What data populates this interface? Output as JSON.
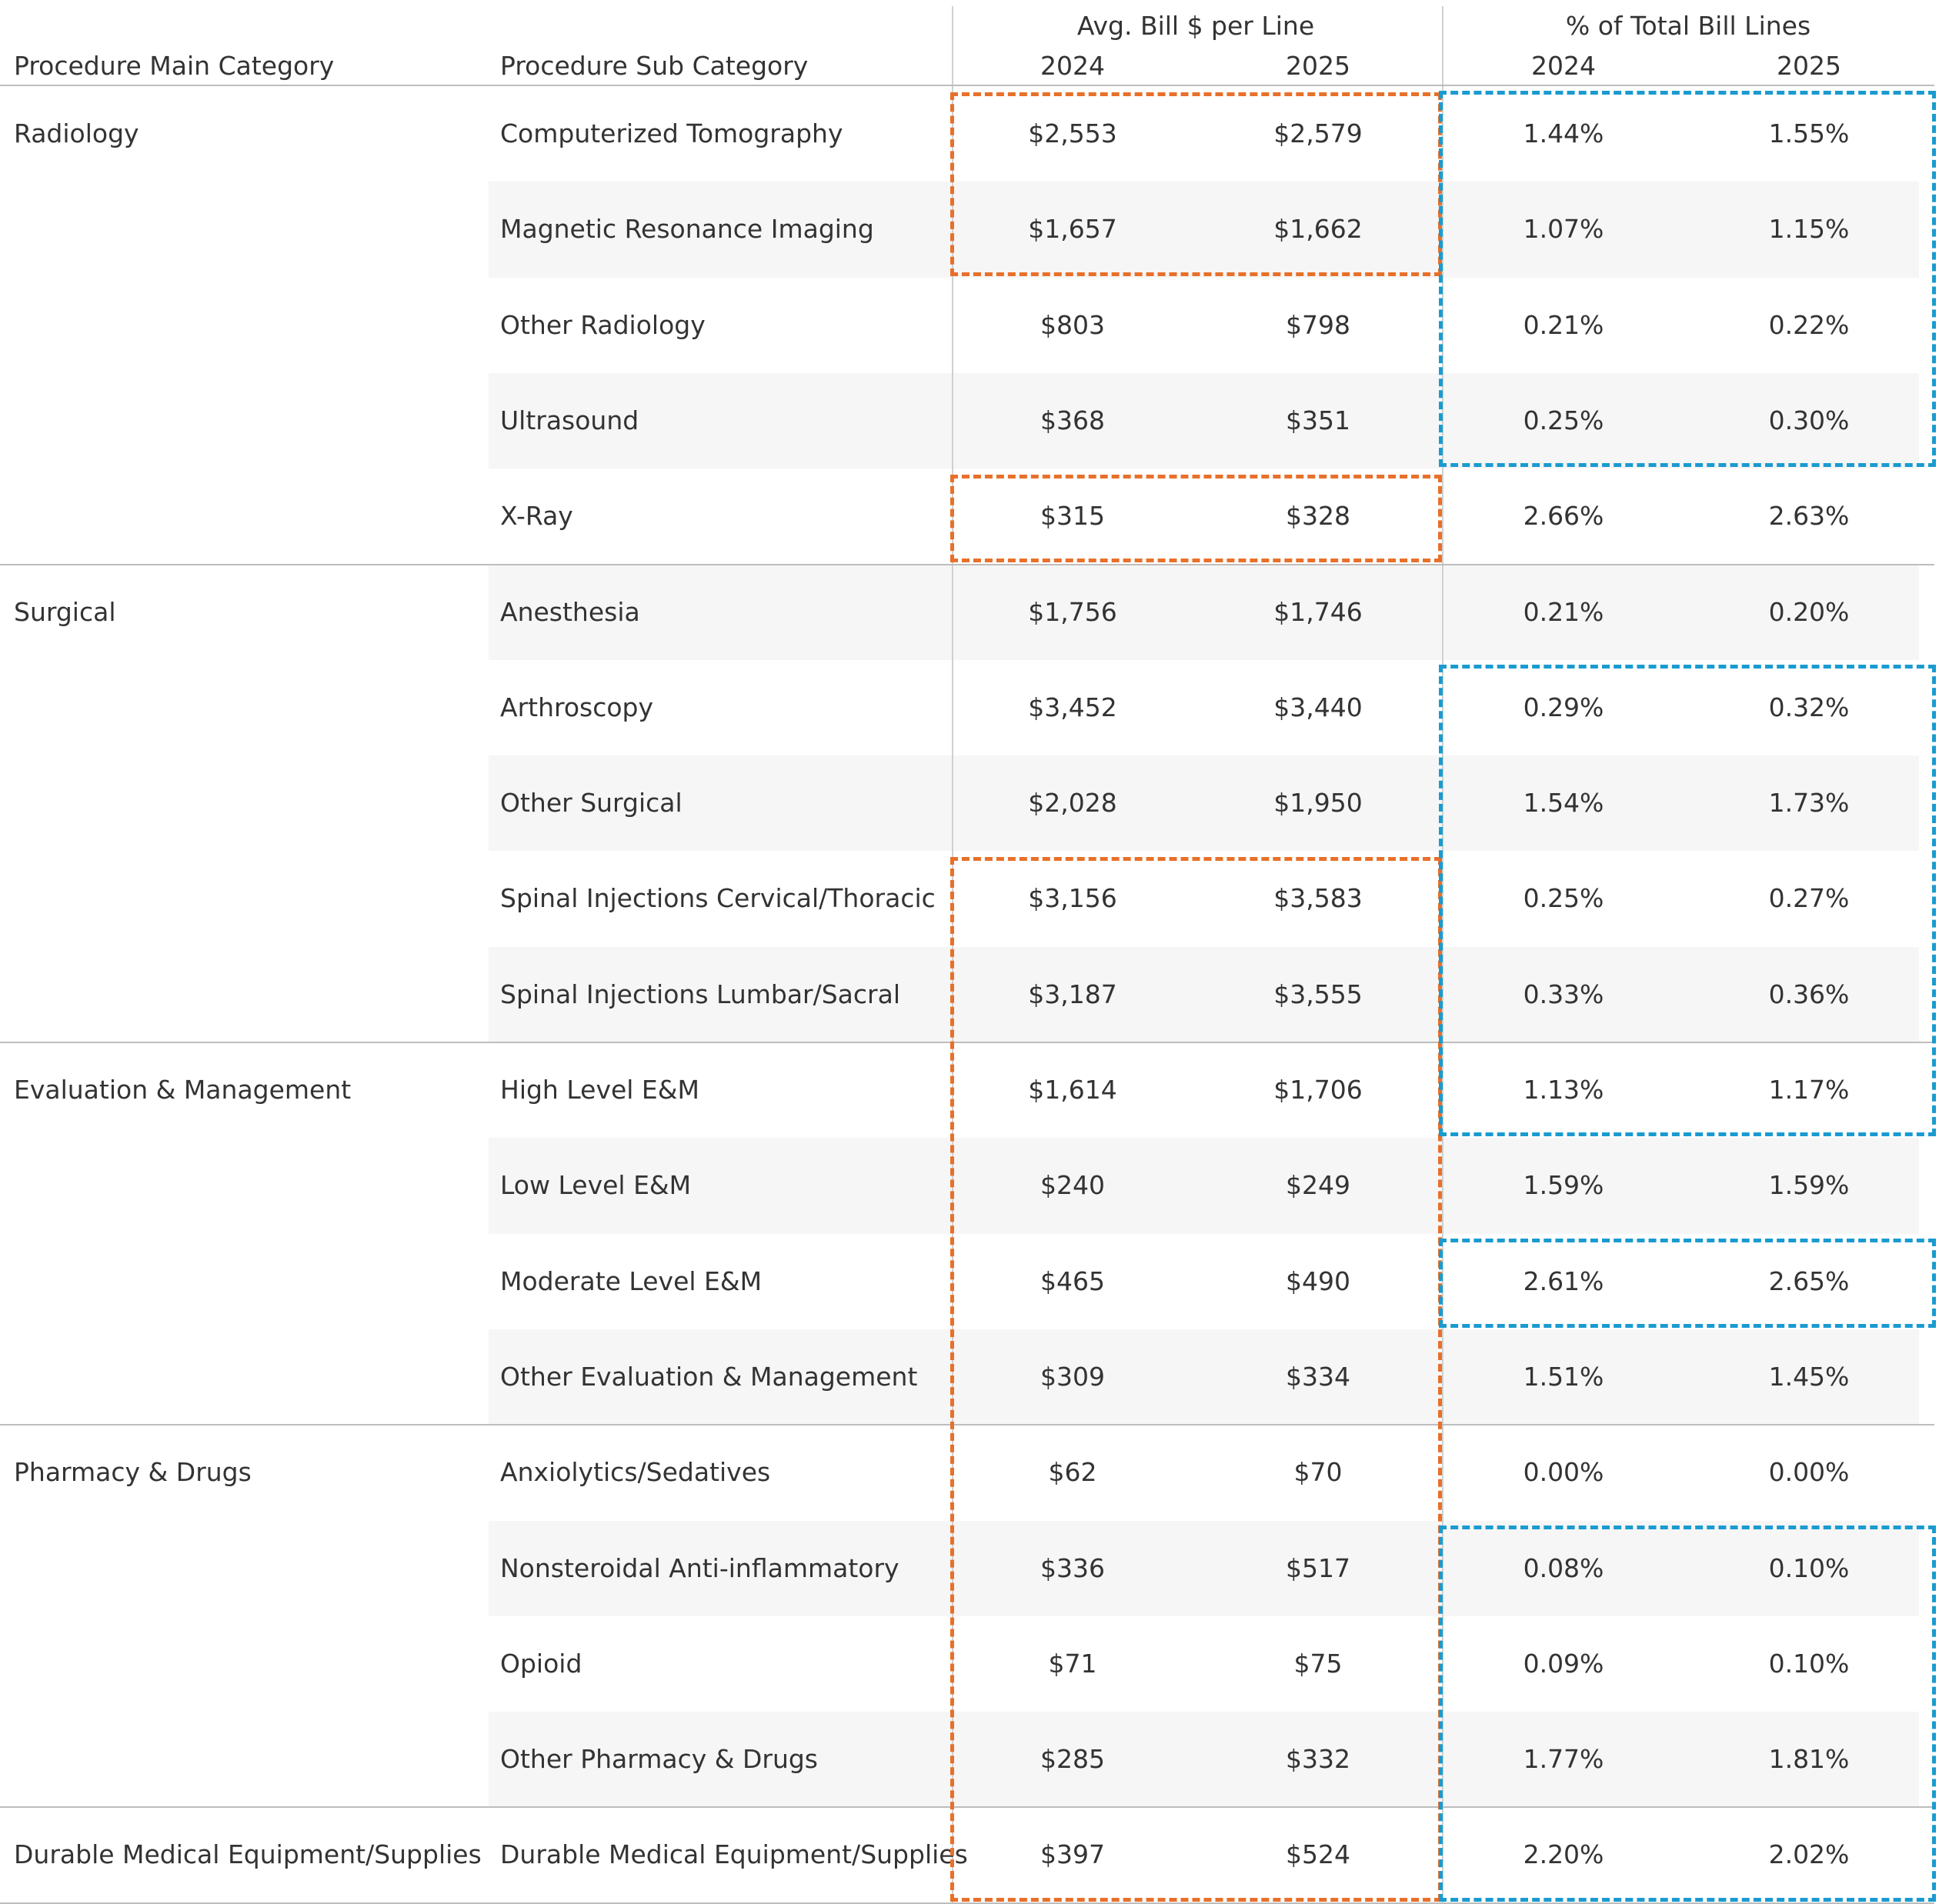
{
  "chart_data": {
    "type": "table",
    "header": {
      "col_main": "Procedure Main Category",
      "col_sub": "Procedure Sub Category",
      "group1": "Avg. Bill $ per Line",
      "group2": "% of Total Bill Lines",
      "years": [
        "2024",
        "2025"
      ]
    },
    "groups": [
      {
        "main": "Radiology",
        "rows": [
          {
            "sub": "Computerized Tomography",
            "bill_2024": "$2,553",
            "bill_2025": "$2,579",
            "pct_2024": "1.44%",
            "pct_2025": "1.55%"
          },
          {
            "sub": "Magnetic Resonance Imaging",
            "bill_2024": "$1,657",
            "bill_2025": "$1,662",
            "pct_2024": "1.07%",
            "pct_2025": "1.15%"
          },
          {
            "sub": "Other Radiology",
            "bill_2024": "$803",
            "bill_2025": "$798",
            "pct_2024": "0.21%",
            "pct_2025": "0.22%"
          },
          {
            "sub": "Ultrasound",
            "bill_2024": "$368",
            "bill_2025": "$351",
            "pct_2024": "0.25%",
            "pct_2025": "0.30%"
          },
          {
            "sub": "X-Ray",
            "bill_2024": "$315",
            "bill_2025": "$328",
            "pct_2024": "2.66%",
            "pct_2025": "2.63%"
          }
        ]
      },
      {
        "main": "Surgical",
        "rows": [
          {
            "sub": "Anesthesia",
            "bill_2024": "$1,756",
            "bill_2025": "$1,746",
            "pct_2024": "0.21%",
            "pct_2025": "0.20%"
          },
          {
            "sub": "Arthroscopy",
            "bill_2024": "$3,452",
            "bill_2025": "$3,440",
            "pct_2024": "0.29%",
            "pct_2025": "0.32%"
          },
          {
            "sub": "Other Surgical",
            "bill_2024": "$2,028",
            "bill_2025": "$1,950",
            "pct_2024": "1.54%",
            "pct_2025": "1.73%"
          },
          {
            "sub": "Spinal Injections Cervical/Thoracic",
            "bill_2024": "$3,156",
            "bill_2025": "$3,583",
            "pct_2024": "0.25%",
            "pct_2025": "0.27%"
          },
          {
            "sub": "Spinal Injections Lumbar/Sacral",
            "bill_2024": "$3,187",
            "bill_2025": "$3,555",
            "pct_2024": "0.33%",
            "pct_2025": "0.36%"
          }
        ]
      },
      {
        "main": "Evaluation & Management",
        "rows": [
          {
            "sub": "High Level E&M",
            "bill_2024": "$1,614",
            "bill_2025": "$1,706",
            "pct_2024": "1.13%",
            "pct_2025": "1.17%"
          },
          {
            "sub": "Low Level E&M",
            "bill_2024": "$240",
            "bill_2025": "$249",
            "pct_2024": "1.59%",
            "pct_2025": "1.59%"
          },
          {
            "sub": "Moderate Level E&M",
            "bill_2024": "$465",
            "bill_2025": "$490",
            "pct_2024": "2.61%",
            "pct_2025": "2.65%"
          },
          {
            "sub": "Other Evaluation & Management",
            "bill_2024": "$309",
            "bill_2025": "$334",
            "pct_2024": "1.51%",
            "pct_2025": "1.45%"
          }
        ]
      },
      {
        "main": "Pharmacy & Drugs",
        "rows": [
          {
            "sub": "Anxiolytics/Sedatives",
            "bill_2024": "$62",
            "bill_2025": "$70",
            "pct_2024": "0.00%",
            "pct_2025": "0.00%"
          },
          {
            "sub": "Nonsteroidal Anti-inflammatory",
            "bill_2024": "$336",
            "bill_2025": "$517",
            "pct_2024": "0.08%",
            "pct_2025": "0.10%"
          },
          {
            "sub": "Opioid",
            "bill_2024": "$71",
            "bill_2025": "$75",
            "pct_2024": "0.09%",
            "pct_2025": "0.10%"
          },
          {
            "sub": "Other Pharmacy & Drugs",
            "bill_2024": "$285",
            "bill_2025": "$332",
            "pct_2024": "1.77%",
            "pct_2025": "1.81%"
          }
        ]
      },
      {
        "main": "Durable Medical Equipment/Supplies",
        "rows": [
          {
            "sub": "Durable Medical Equipment/Supplies",
            "bill_2024": "$397",
            "bill_2025": "$524",
            "pct_2024": "2.20%",
            "pct_2025": "2.02%"
          }
        ]
      }
    ],
    "highlights": {
      "colors": {
        "bill": "#e8702a",
        "pct": "#1a9bd0"
      },
      "bill_ranges": [
        [
          0,
          1
        ],
        [
          4,
          4
        ],
        [
          8,
          18
        ]
      ],
      "pct_ranges": [
        [
          0,
          3
        ],
        [
          6,
          10
        ],
        [
          12,
          12
        ],
        [
          15,
          18
        ]
      ]
    }
  }
}
